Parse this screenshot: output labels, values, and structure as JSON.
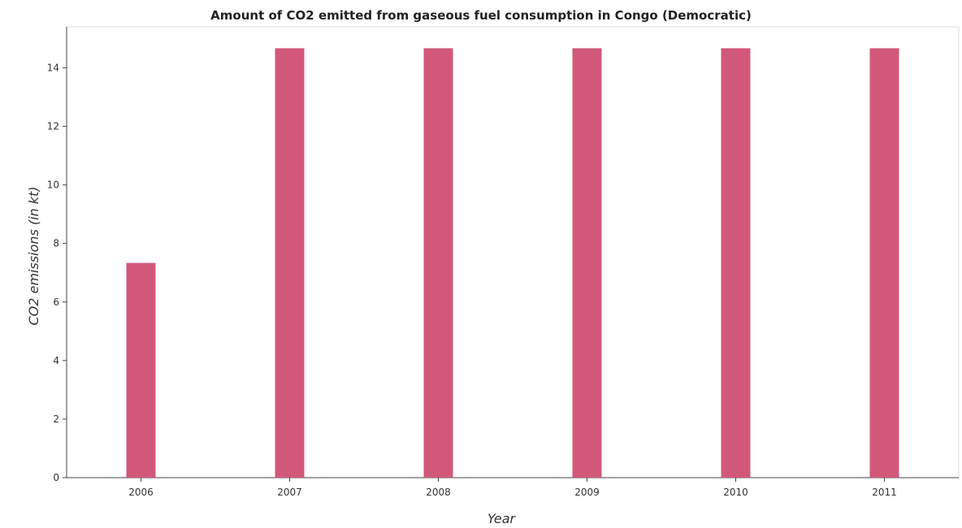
{
  "chart_data": {
    "type": "bar",
    "title": "Amount of CO2 emitted from gaseous fuel consumption in Congo (Democratic)",
    "xlabel": "Year",
    "ylabel": "CO2 emissions (in kt)",
    "categories": [
      "2006",
      "2007",
      "2008",
      "2009",
      "2010",
      "2011"
    ],
    "values": [
      7.334,
      14.668,
      14.668,
      14.668,
      14.668,
      14.668
    ],
    "ylim": [
      0,
      15.4
    ],
    "yticks": [
      "0",
      "2",
      "4",
      "6",
      "8",
      "10",
      "12",
      "14"
    ],
    "grid": false,
    "bar_color": "#d2587a"
  }
}
